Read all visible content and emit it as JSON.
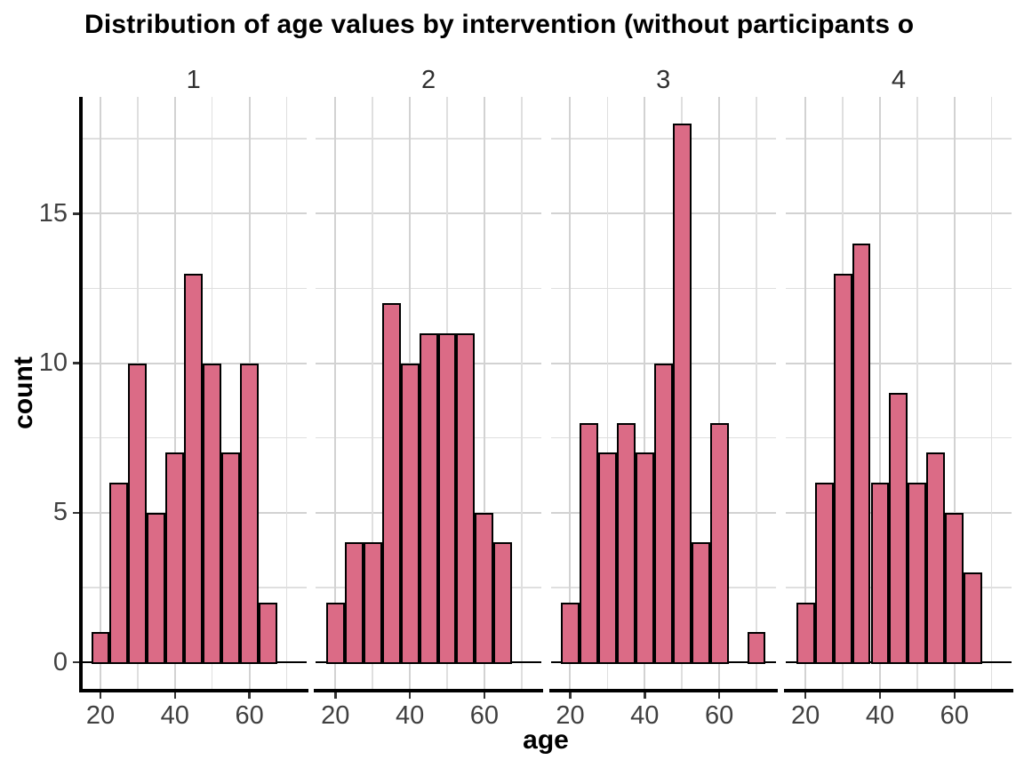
{
  "chart_data": {
    "type": "bar",
    "subtype": "faceted-histogram",
    "title": "Distribution of age values by intervention (without participants o",
    "xlabel": "age",
    "ylabel": "count",
    "facet_variable": "intervention",
    "bin_start": 17.5,
    "bin_width": 5,
    "x_ticks": [
      20,
      40,
      60
    ],
    "y_ticks": [
      0,
      5,
      10,
      15
    ],
    "xlim": [
      14.75,
      75.25
    ],
    "ylim": [
      0,
      18.9
    ],
    "grid": "major and minor, both axes",
    "legend": "none",
    "x_minor_gridlines": [
      30,
      50,
      70
    ],
    "y_minor_gridlines": [
      2.5,
      7.5,
      12.5,
      17.5
    ],
    "facets": [
      {
        "label": "1",
        "counts": [
          1,
          6,
          10,
          5,
          7,
          13,
          10,
          7,
          10,
          2,
          0
        ]
      },
      {
        "label": "2",
        "counts": [
          2,
          4,
          4,
          12,
          10,
          11,
          11,
          11,
          5,
          4,
          0
        ]
      },
      {
        "label": "3",
        "counts": [
          2,
          8,
          7,
          8,
          7,
          10,
          18,
          4,
          8,
          0,
          1
        ]
      },
      {
        "label": "4",
        "counts": [
          2,
          6,
          13,
          14,
          6,
          9,
          6,
          7,
          5,
          3,
          0
        ]
      }
    ],
    "colors": {
      "bar_fill": "#db6b86",
      "bar_stroke": "#000000",
      "grid_major": "#d2d2d2",
      "grid_minor": "#dfdfdf",
      "axis_line": "#000000",
      "tick_mark": "#333333",
      "tick_label": "#404040",
      "facet_label": "#303030",
      "title": "#000000",
      "background": "#ffffff"
    }
  }
}
